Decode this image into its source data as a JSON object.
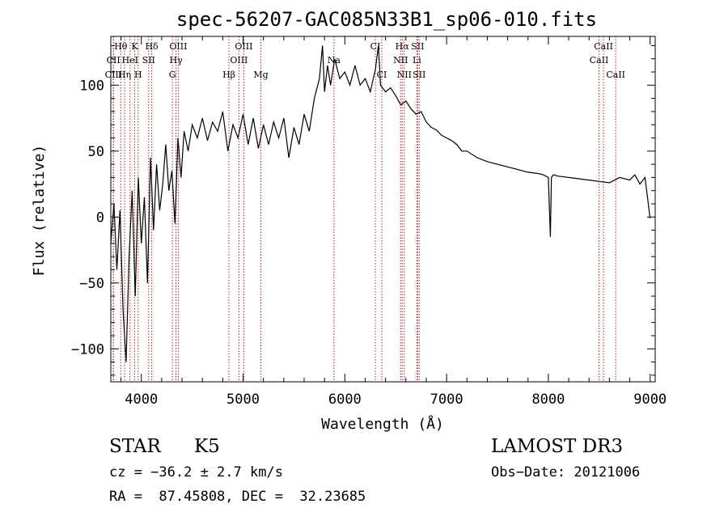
{
  "chart_data": {
    "type": "line",
    "title": "spec-56207-GAC085N33B1_sp06-010.fits",
    "xlabel": "Wavelength (Å)",
    "ylabel": "Flux (relative)",
    "xlim": [
      3700,
      9050
    ],
    "ylim": [
      -125,
      137
    ],
    "x_ticks": [
      4000,
      5000,
      6000,
      7000,
      8000,
      9000
    ],
    "y_ticks": [
      -100,
      -50,
      0,
      50,
      100
    ],
    "grid": false,
    "series": [
      {
        "x": [
          3700,
          3730,
          3760,
          3790,
          3820,
          3850,
          3880,
          3910,
          3940,
          3970,
          4000,
          4030,
          4060,
          4090,
          4120,
          4150,
          4180,
          4210,
          4240,
          4270,
          4300,
          4330,
          4360,
          4390,
          4420,
          4460,
          4500,
          4550,
          4600,
          4650,
          4700,
          4750,
          4800,
          4850,
          4900,
          4950,
          5000,
          5050,
          5100,
          5150,
          5200,
          5250,
          5300,
          5350,
          5400,
          5450,
          5500,
          5550,
          5600,
          5650,
          5700,
          5750,
          5780,
          5800,
          5830,
          5860,
          5900,
          5950,
          6000,
          6050,
          6100,
          6150,
          6200,
          6250,
          6300,
          6330,
          6350,
          6400,
          6450,
          6500,
          6550,
          6600,
          6650,
          6700,
          6750,
          6800,
          6850,
          6900,
          6950,
          7000,
          7050,
          7100,
          7150,
          7200,
          7300,
          7400,
          7500,
          7600,
          7700,
          7800,
          7900,
          7950,
          8000,
          8020,
          8030,
          8050,
          8100,
          8200,
          8300,
          8400,
          8500,
          8600,
          8700,
          8800,
          8850,
          8900,
          8950,
          9000
        ],
        "y": [
          -20,
          10,
          -40,
          5,
          -70,
          -110,
          -30,
          20,
          -60,
          30,
          -20,
          15,
          -50,
          45,
          -10,
          40,
          5,
          25,
          55,
          20,
          35,
          -5,
          60,
          30,
          65,
          50,
          70,
          60,
          75,
          58,
          72,
          65,
          80,
          50,
          70,
          60,
          78,
          55,
          75,
          52,
          70,
          55,
          72,
          60,
          75,
          45,
          68,
          55,
          78,
          65,
          90,
          105,
          130,
          95,
          115,
          100,
          120,
          105,
          110,
          100,
          115,
          100,
          105,
          95,
          112,
          130,
          100,
          95,
          98,
          92,
          85,
          88,
          82,
          78,
          80,
          72,
          68,
          66,
          62,
          60,
          58,
          55,
          50,
          50,
          45,
          42,
          40,
          38,
          36,
          34,
          33,
          32,
          30,
          -15,
          30,
          32,
          31,
          30,
          29,
          28,
          27,
          26,
          30,
          28,
          32,
          25,
          30,
          -1
        ]
      }
    ],
    "line_markers": [
      {
        "label": "Hθ",
        "wavelength": 3798,
        "row": 1
      },
      {
        "label": "CII",
        "wavelength": 3725,
        "row": 2
      },
      {
        "label": "CIII",
        "wavelength": 3727,
        "row": 3
      },
      {
        "label": "K",
        "wavelength": 3934,
        "row": 1
      },
      {
        "label": "HeI",
        "wavelength": 3889,
        "row": 2
      },
      {
        "label": "Hη",
        "wavelength": 3835,
        "row": 3
      },
      {
        "label": "SII",
        "wavelength": 4072,
        "row": 2
      },
      {
        "label": "H",
        "wavelength": 3969,
        "row": 3
      },
      {
        "label": "Hδ",
        "wavelength": 4102,
        "row": 1
      },
      {
        "label": "OIII",
        "wavelength": 4363,
        "row": 1
      },
      {
        "label": "Hγ",
        "wavelength": 4341,
        "row": 2
      },
      {
        "label": "G",
        "wavelength": 4305,
        "row": 3
      },
      {
        "label": "OIII",
        "wavelength": 5007,
        "row": 1
      },
      {
        "label": "OIII",
        "wavelength": 4959,
        "row": 2
      },
      {
        "label": "Hβ",
        "wavelength": 4861,
        "row": 3
      },
      {
        "label": "Mg",
        "wavelength": 5175,
        "row": 3
      },
      {
        "label": "Na",
        "wavelength": 5893,
        "row": 2
      },
      {
        "label": "CI",
        "wavelength": 6300,
        "row": 1
      },
      {
        "label": "CI",
        "wavelength": 6363,
        "row": 3
      },
      {
        "label": "Hα",
        "wavelength": 6563,
        "row": 1
      },
      {
        "label": "SII",
        "wavelength": 6716,
        "row": 1
      },
      {
        "label": "NII",
        "wavelength": 6548,
        "row": 2
      },
      {
        "label": "Li",
        "wavelength": 6708,
        "row": 2
      },
      {
        "label": "NII",
        "wavelength": 6584,
        "row": 3
      },
      {
        "label": "SII",
        "wavelength": 6731,
        "row": 3
      },
      {
        "label": "CaII",
        "wavelength": 8542,
        "row": 1
      },
      {
        "label": "CaII",
        "wavelength": 8498,
        "row": 2
      },
      {
        "label": "CaII",
        "wavelength": 8662,
        "row": 3
      }
    ],
    "marker_color": "#b22222"
  },
  "info": {
    "object_type": "STAR",
    "subclass": "K5",
    "survey": "LAMOST DR3",
    "cz": "cz = −36.2 ± 2.7 km/s",
    "obs_date": "Obs−Date: 20121006",
    "coords": "RA =  87.45808, DEC =  32.23685"
  }
}
